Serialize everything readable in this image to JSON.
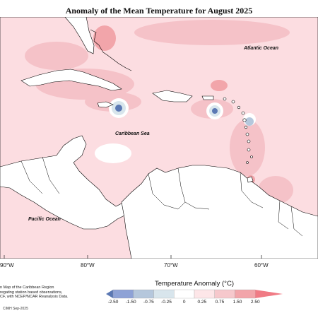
{
  "title": "Anomaly of the Mean Temperature for August 2025",
  "ocean_labels": {
    "atlantic": "Atlantic Ocean",
    "caribbean": "Caribbean Sea",
    "pacific": "Pacific Ocean"
  },
  "longitude_labels": [
    "90°W",
    "80°W",
    "70°W",
    "60°W"
  ],
  "note_lines": [
    "n Map of the Caribbean Region",
    "regating station based observations,",
    "CF, with NCEP/NCAR Reanalysis Data."
  ],
  "credit": "CIMH Sep-2025",
  "legend": {
    "title": "Temperature Anomaly (°C)",
    "ticks": [
      "-2.50",
      "-1.50",
      "-0.75",
      "-0.25",
      "0",
      "0.25",
      "0.75",
      "1.50",
      "2.50"
    ],
    "colors": [
      "#5b78b3",
      "#8ea2d6",
      "#b5c7dc",
      "#d8e5ec",
      "#ffffff",
      "#fde6e8",
      "#f6c8cc",
      "#f2a5aa",
      "#f07b85"
    ]
  },
  "colors": {
    "background_anomaly": "#fcdde1",
    "warm_anomaly": "#f5c2c8",
    "cool_anomaly": "#5b78b3",
    "land": "#ffffff",
    "coast": "#000000"
  }
}
